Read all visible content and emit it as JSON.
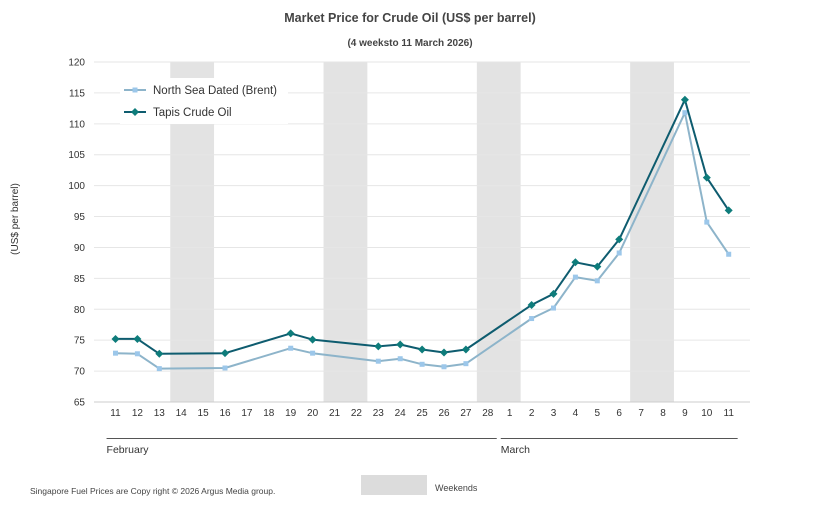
{
  "chart_data": {
    "type": "line",
    "title": "Market Price for Crude  Oil (US$ per barrel)",
    "subtitle": "(4 weeksto 11 March 2026)",
    "ylabel": "(US$ per barrel)",
    "ylim": [
      65,
      120
    ],
    "yticks": [
      65,
      70,
      75,
      80,
      85,
      90,
      95,
      100,
      105,
      110,
      115,
      120
    ],
    "categories": [
      "11",
      "12",
      "13",
      "14",
      "15",
      "16",
      "17",
      "18",
      "19",
      "20",
      "21",
      "22",
      "23",
      "24",
      "25",
      "26",
      "27",
      "28",
      "1",
      "2",
      "3",
      "4",
      "5",
      "6",
      "7",
      "8",
      "9",
      "10",
      "11"
    ],
    "weekend_ranges": [
      [
        3,
        4
      ],
      [
        10,
        11
      ],
      [
        17,
        18
      ],
      [
        24,
        25
      ]
    ],
    "months": [
      {
        "label": "February",
        "start": 0,
        "end": 17
      },
      {
        "label": "March",
        "start": 18,
        "end": 28
      }
    ],
    "series": [
      {
        "name": "North Sea Dated (Brent)",
        "color": "#8db4ca",
        "marker_color": "#9cc7ea",
        "marker": "square",
        "points": [
          [
            0,
            72.9
          ],
          [
            1,
            72.8
          ],
          [
            2,
            70.4
          ],
          [
            5,
            70.5
          ],
          [
            8,
            73.7
          ],
          [
            9,
            72.9
          ],
          [
            12,
            71.6
          ],
          [
            13,
            72.0
          ],
          [
            14,
            71.1
          ],
          [
            15,
            70.7
          ],
          [
            16,
            71.2
          ],
          [
            19,
            78.5
          ],
          [
            20,
            80.2
          ],
          [
            21,
            85.2
          ],
          [
            22,
            84.6
          ],
          [
            23,
            89.1
          ],
          [
            26,
            111.8
          ],
          [
            27,
            94.1
          ],
          [
            28,
            88.9
          ]
        ]
      },
      {
        "name": "Tapis Crude Oil",
        "color": "#0e5c6f",
        "marker_color": "#0e7c7b",
        "marker": "diamond",
        "points": [
          [
            0,
            75.2
          ],
          [
            1,
            75.2
          ],
          [
            2,
            72.8
          ],
          [
            5,
            72.9
          ],
          [
            8,
            76.1
          ],
          [
            9,
            75.1
          ],
          [
            12,
            74.0
          ],
          [
            13,
            74.3
          ],
          [
            14,
            73.5
          ],
          [
            15,
            73.0
          ],
          [
            16,
            73.5
          ],
          [
            19,
            80.7
          ],
          [
            20,
            82.5
          ],
          [
            21,
            87.6
          ],
          [
            22,
            86.9
          ],
          [
            23,
            91.3
          ],
          [
            26,
            113.9
          ],
          [
            27,
            101.3
          ],
          [
            28,
            96.0
          ]
        ]
      }
    ],
    "legend": [
      "North Sea Dated (Brent)",
      "Tapis Crude Oil"
    ],
    "legend_position": "top-left",
    "weekends_label": "Weekends"
  },
  "footer": "Singapore  Fuel Prices are  Copy right © 2026 Argus Media  group."
}
